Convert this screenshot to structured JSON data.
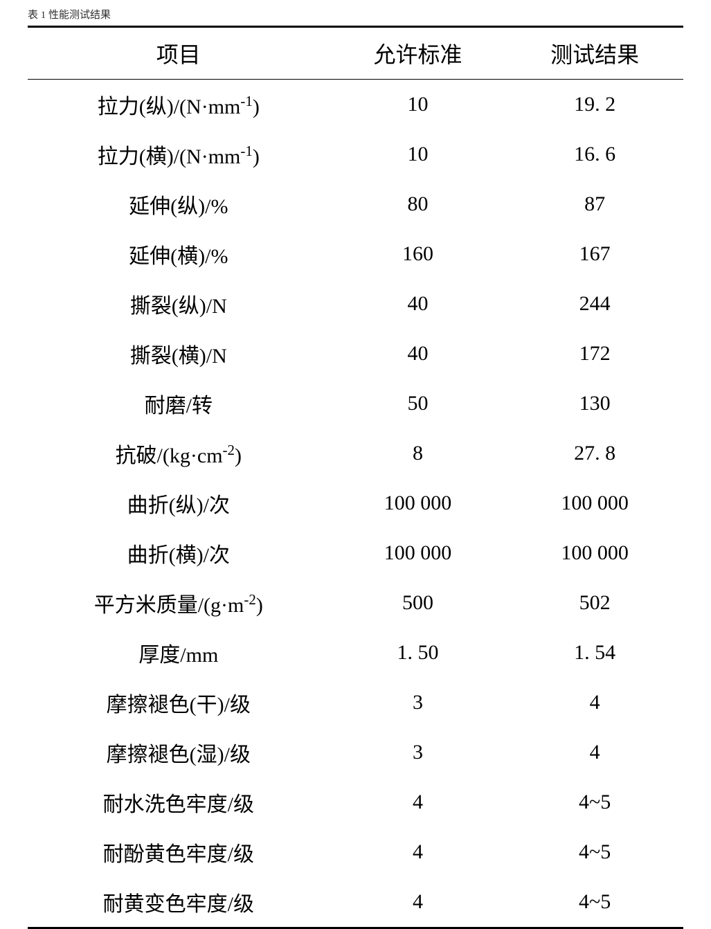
{
  "caption": "表 1 性能测试结果",
  "table": {
    "type": "table",
    "background_color": "#ffffff",
    "text_color": "#000000",
    "border_color": "#000000",
    "border_top_width": 3,
    "border_bottom_width": 3,
    "header_border_width": 1.5,
    "header_fontsize": 32,
    "cell_fontsize": 30,
    "font_family": "SimSun",
    "columns": [
      {
        "label": "项目",
        "width_pct": 46,
        "align": "center"
      },
      {
        "label": "允许标准",
        "width_pct": 27,
        "align": "center"
      },
      {
        "label": "测试结果",
        "width_pct": 27,
        "align": "center"
      }
    ],
    "rows": [
      {
        "item_html": "拉力(纵)/(N·mm<sup>-1</sup>)",
        "standard": "10",
        "result": "19. 2"
      },
      {
        "item_html": "拉力(横)/(N·mm<sup>-1</sup>)",
        "standard": "10",
        "result": "16. 6"
      },
      {
        "item_html": "延伸(纵)/%",
        "standard": "80",
        "result": "87"
      },
      {
        "item_html": "延伸(横)/%",
        "standard": "160",
        "result": "167"
      },
      {
        "item_html": "撕裂(纵)/N",
        "standard": "40",
        "result": "244"
      },
      {
        "item_html": "撕裂(横)/N",
        "standard": "40",
        "result": "172"
      },
      {
        "item_html": "耐磨/转",
        "standard": "50",
        "result": "130"
      },
      {
        "item_html": "抗破/(kg·cm<sup>-2</sup>)",
        "standard": "8",
        "result": "27. 8"
      },
      {
        "item_html": "曲折(纵)/次",
        "standard": "100 000",
        "result": "100 000"
      },
      {
        "item_html": "曲折(横)/次",
        "standard": "100 000",
        "result": "100 000"
      },
      {
        "item_html": "平方米质量/(g·m<sup>-2</sup>)",
        "standard": "500",
        "result": "502"
      },
      {
        "item_html": "厚度/mm",
        "standard": "1. 50",
        "result": "1. 54"
      },
      {
        "item_html": "摩擦褪色(干)/级",
        "standard": "3",
        "result": "4"
      },
      {
        "item_html": "摩擦褪色(湿)/级",
        "standard": "3",
        "result": "4"
      },
      {
        "item_html": "耐水洗色牢度/级",
        "standard": "4",
        "result": "4~5"
      },
      {
        "item_html": "耐酚黄色牢度/级",
        "standard": "4",
        "result": "4~5"
      },
      {
        "item_html": "耐黄变色牢度/级",
        "standard": "4",
        "result": "4~5"
      }
    ]
  }
}
